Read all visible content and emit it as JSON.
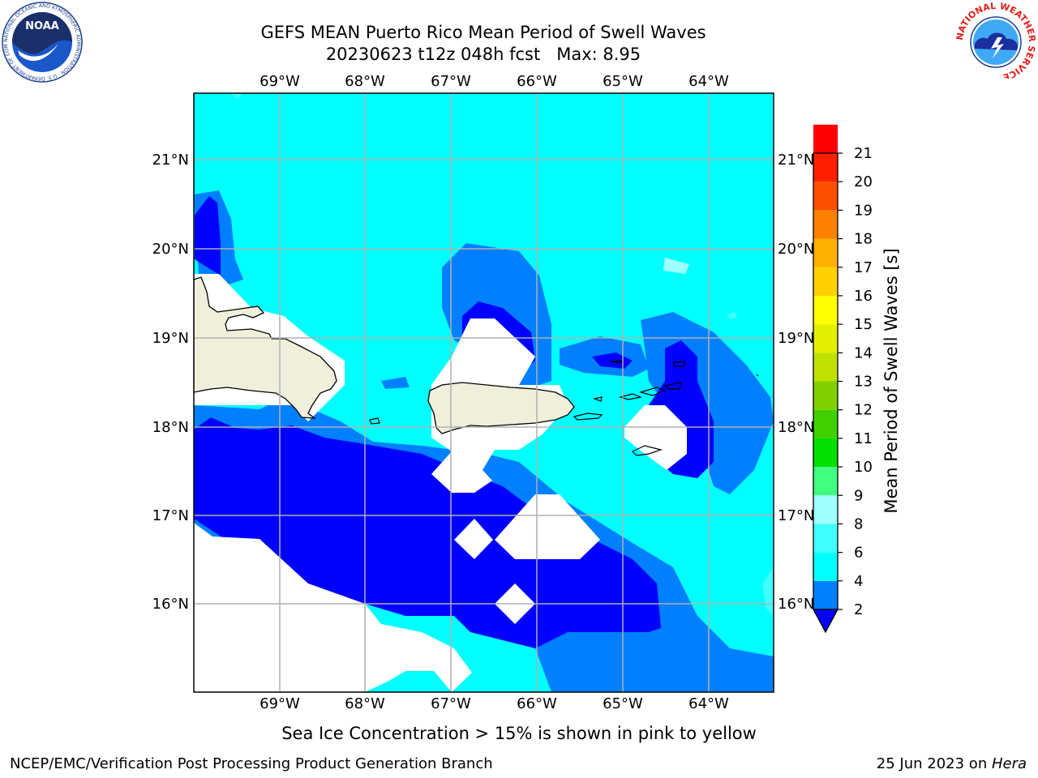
{
  "header": {
    "title_line1": "GEFS MEAN Puerto Rico Mean Period of Swell Waves",
    "title_line2": "20230623 t12z 048h fcst   Max: 8.95",
    "left_logo": "noaa-logo",
    "right_logo": "nws-logo",
    "left_logo_text": "NOAA",
    "left_logo_ring_text": "NATIONAL OCEANIC AND ATMOSPHERIC ADMINISTRATION · U.S. DEPARTMENT OF COMMERCE",
    "right_logo_ring_text": "NATIONAL WEATHER SERVICE"
  },
  "map": {
    "lon_labels": [
      "69°W",
      "68°W",
      "67°W",
      "66°W",
      "65°W",
      "64°W"
    ],
    "lat_labels": [
      "21°N",
      "20°N",
      "19°N",
      "18°N",
      "17°N",
      "16°N"
    ],
    "colors": {
      "land": "#efefdc",
      "undefined": "#ffffff",
      "band_2_4": "#0000ff",
      "band_4_6": "#0080ff",
      "band_6_8": "#00ffff",
      "band_8_9": "#40ffff",
      "band_9_10": "#a0ffff",
      "grid": "#b0b0b0"
    }
  },
  "colorbar": {
    "label": "Mean Period of Swell Waves [s]",
    "tick_labels": [
      "2",
      "4",
      "6",
      "8",
      "9",
      "10",
      "11",
      "12",
      "13",
      "14",
      "15",
      "16",
      "17",
      "18",
      "19",
      "20",
      "21"
    ],
    "colors": [
      "#0080ff",
      "#00ffff",
      "#40ffff",
      "#a0ffff",
      "#40ff80",
      "#00e000",
      "#40d000",
      "#80d000",
      "#c0e000",
      "#e0f000",
      "#ffff00",
      "#ffd000",
      "#ffb000",
      "#ff8000",
      "#ff5000",
      "#ff2000",
      "#ff0000"
    ],
    "under_color": "#0000ff"
  },
  "footer": {
    "note": "Sea Ice Concentration > 15% is shown in pink to yellow",
    "left": "NCEP/EMC/Verification Post Processing Product Generation Branch",
    "right_prefix": "25 Jun 2023 on ",
    "right_machine": "Hera"
  }
}
